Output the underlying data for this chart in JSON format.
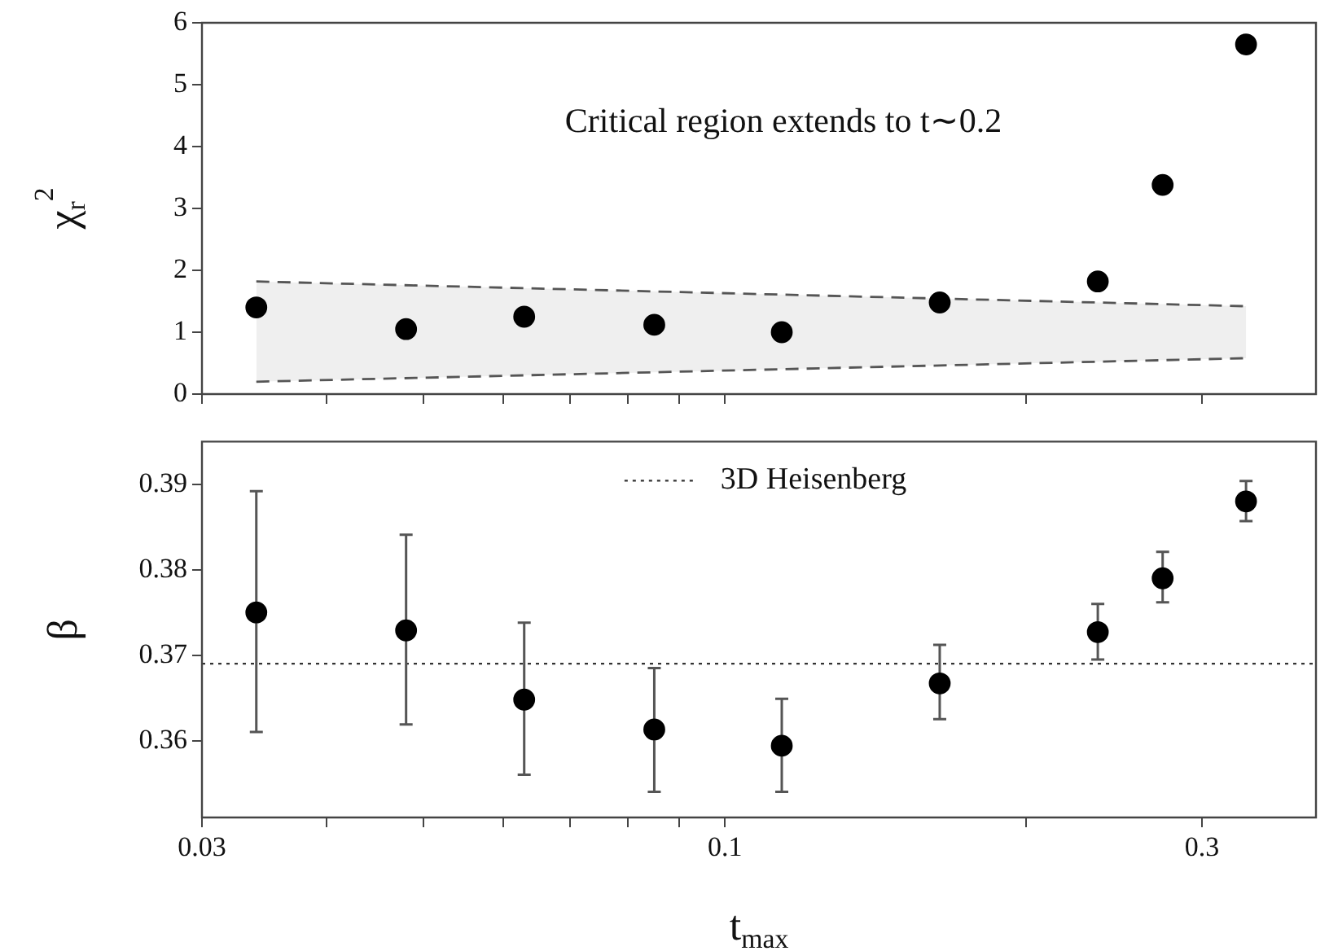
{
  "chart_data": [
    {
      "type": "scatter",
      "ylabel": "χ$_{r}$$^{2}$",
      "annotations": [
        "Critical region extends to t∼0.2"
      ],
      "log": "x",
      "xlim": [
        0.03,
        0.39
      ],
      "xticks": [
        {
          "value": 0.03,
          "label": null
        },
        {
          "value": 0.04,
          "label": null
        },
        {
          "value": 0.05,
          "label": null
        },
        {
          "value": 0.06,
          "label": null
        },
        {
          "value": 0.07,
          "label": null
        },
        {
          "value": 0.08,
          "label": null
        },
        {
          "value": 0.09,
          "label": null
        },
        {
          "value": 0.1,
          "label": null
        },
        {
          "value": 0.2,
          "label": null
        },
        {
          "value": 0.3,
          "label": null
        }
      ],
      "ylim": [
        0,
        6
      ],
      "yticks": [
        0,
        1,
        2,
        3,
        4,
        5,
        6
      ],
      "tick_labels": "y",
      "grid": false,
      "marker": "circle",
      "series": [
        {
          "color": "#000000",
          "x": [
            0.034,
            0.048,
            0.063,
            0.085,
            0.114,
            0.164,
            0.236,
            0.274,
            0.332
          ],
          "values": [
            1.4,
            1.05,
            1.25,
            1.12,
            1.0,
            1.48,
            1.82,
            3.38,
            5.65
          ]
        },
        {
          "type": "line",
          "color": "#555555",
          "line_style": "dashed",
          "marker": "none",
          "x": [
            0.034,
            0.332
          ],
          "values": [
            1.82,
            1.42
          ]
        },
        {
          "type": "line",
          "color": "#555555",
          "line_style": "dashed",
          "marker": "none",
          "x": [
            0.034,
            0.332
          ],
          "values": [
            0.2,
            0.58
          ],
          "lower": [
            0.2,
            0.58
          ],
          "upper": [
            1.82,
            1.42
          ]
        }
      ]
    },
    {
      "type": "scatter",
      "xlabel": "t$_{max}$",
      "ylabel": "β",
      "log": "x",
      "xlim": [
        0.03,
        0.39
      ],
      "xticks": [
        0.03,
        {
          "value": 0.04,
          "label": null
        },
        {
          "value": 0.05,
          "label": null
        },
        {
          "value": 0.06,
          "label": null
        },
        {
          "value": 0.07,
          "label": null
        },
        {
          "value": 0.08,
          "label": null
        },
        {
          "value": 0.09,
          "label": null
        },
        0.1,
        {
          "value": 0.2,
          "label": null
        },
        0.3
      ],
      "ylim": [
        0.351,
        0.395
      ],
      "yticks": [
        0.36,
        0.37,
        0.38,
        0.39
      ],
      "grid": false,
      "marker": "circle",
      "legend": "top",
      "ref_lines": [
        {
          "axis": "y",
          "value": 0.369,
          "label": "3D Heisenberg",
          "line_style": "dotted",
          "color": "#333333"
        }
      ],
      "series": [
        {
          "color": "#000000",
          "x": [
            0.034,
            0.048,
            0.063,
            0.085,
            0.114,
            0.164,
            0.236,
            0.274,
            0.332
          ],
          "values": [
            0.375,
            0.3729,
            0.3648,
            0.3613,
            0.3594,
            0.3667,
            0.3727,
            0.379,
            0.388
          ],
          "errors": [
            [
              0.361,
              0.3892
            ],
            [
              0.3619,
              0.3841
            ],
            [
              0.356,
              0.3738
            ],
            [
              0.354,
              0.3685
            ],
            [
              0.354,
              0.3649
            ],
            [
              0.3625,
              0.3712
            ],
            [
              0.3695,
              0.376
            ],
            [
              0.3762,
              0.3821
            ],
            [
              0.3857,
              0.3904
            ]
          ]
        }
      ]
    }
  ]
}
